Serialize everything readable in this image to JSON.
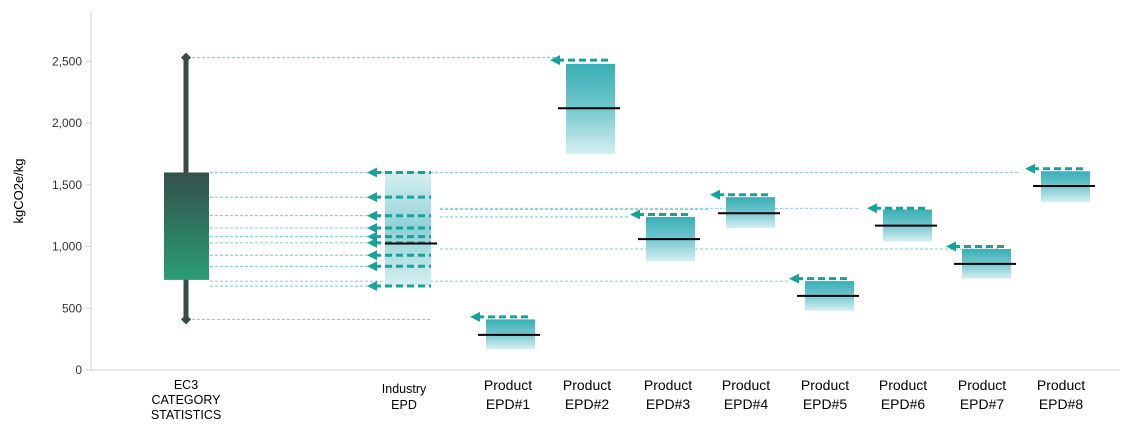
{
  "chart_data": {
    "type": "boxplot",
    "ylabel": "kgCO2e/kg",
    "ylim": [
      0,
      2900
    ],
    "y_ticks": [
      "0",
      "500",
      "1,000",
      "1,500",
      "2,000",
      "2,500"
    ],
    "y_tick_values": [
      0,
      500,
      1000,
      1500,
      2000,
      2500
    ],
    "grid": false,
    "colors": {
      "box_top": "#34504a",
      "box_bottom": "#2a9d78",
      "whisker": "#3a4a48",
      "epd_band": "#5bbfc6",
      "arrow": "#17a39a",
      "guide": "#5bbfc6",
      "median": "#000000"
    },
    "ec3_statistics": {
      "label_lines": [
        "EC3",
        "CATEGORY",
        "STATISTICS"
      ],
      "min": 410,
      "q1": 730,
      "q3": 1600,
      "max": 2530
    },
    "industry_epd": {
      "label_lines": [
        "Industry",
        "EPD"
      ],
      "low": 680,
      "high": 1600,
      "median": 1025,
      "arrow_levels": [
        680,
        840,
        930,
        1030,
        1080,
        1150,
        1250,
        1400,
        1600
      ]
    },
    "products": [
      {
        "label_lines": [
          "Product",
          "EPD#1"
        ],
        "low": 170,
        "high": 410,
        "median": 285,
        "arrow": 430
      },
      {
        "label_lines": [
          "Product",
          "EPD#2"
        ],
        "low": 1750,
        "high": 2480,
        "median": 2120,
        "arrow": 2510
      },
      {
        "label_lines": [
          "Product",
          "EPD#3"
        ],
        "low": 880,
        "high": 1240,
        "median": 1060,
        "arrow": 1260
      },
      {
        "label_lines": [
          "Product",
          "EPD#4"
        ],
        "low": 1150,
        "high": 1400,
        "median": 1270,
        "arrow": 1420
      },
      {
        "label_lines": [
          "Product",
          "EPD#5"
        ],
        "low": 480,
        "high": 720,
        "median": 600,
        "arrow": 740
      },
      {
        "label_lines": [
          "Product",
          "EPD#6"
        ],
        "low": 1040,
        "high": 1300,
        "median": 1170,
        "arrow": 1310
      },
      {
        "label_lines": [
          "Product",
          "EPD#7"
        ],
        "low": 740,
        "high": 980,
        "median": 860,
        "arrow": 1000
      },
      {
        "label_lines": [
          "Product",
          "EPD#8"
        ],
        "low": 1360,
        "high": 1610,
        "median": 1490,
        "arrow": 1630
      }
    ]
  }
}
